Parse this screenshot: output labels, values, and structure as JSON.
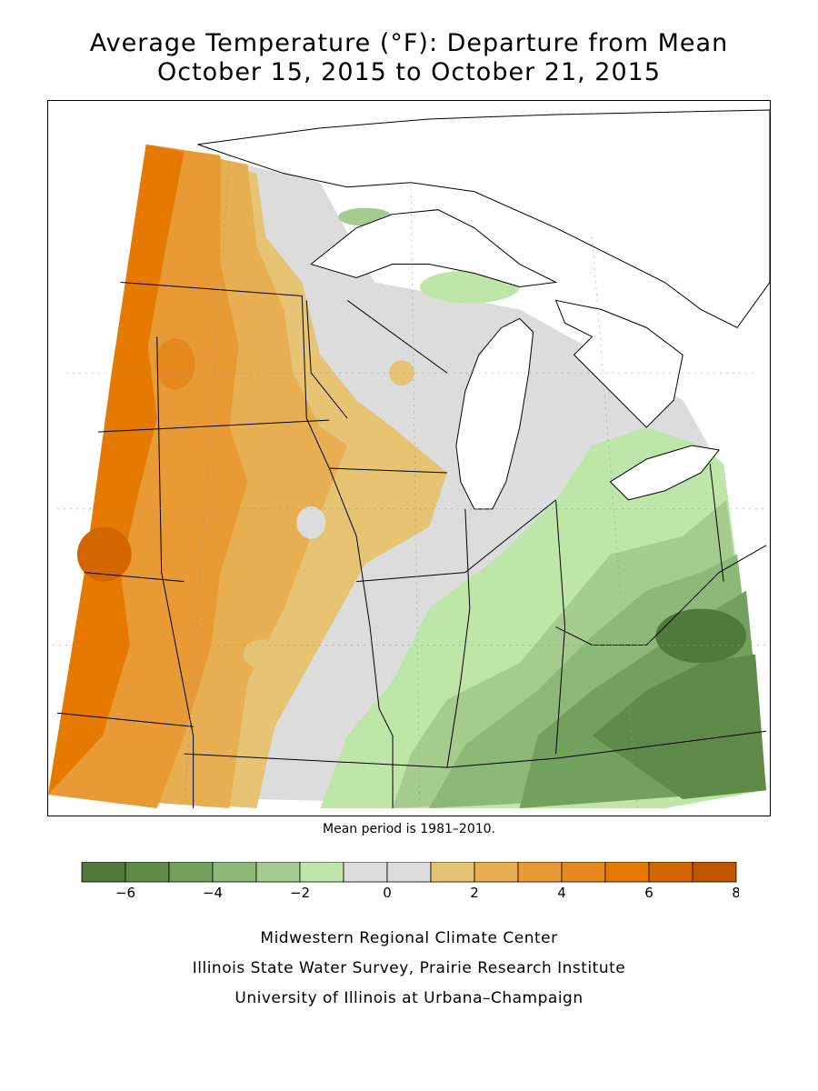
{
  "title_line1": "Average Temperature (°F): Departure from Mean",
  "title_line2": "October 15, 2015 to October 21, 2015",
  "mean_period_note": "Mean period is 1981–2010.",
  "legend": {
    "colors": [
      "#4f7a3a",
      "#5f8a48",
      "#74a05e",
      "#8cb878",
      "#a4cc8f",
      "#bde6a8",
      "#dcdcdc",
      "#dcdcdc",
      "#e6c473",
      "#e8ae52",
      "#e89a35",
      "#e7881f",
      "#e67a00",
      "#d46600",
      "#c25500"
    ],
    "tick_values": [
      "-6",
      "-4",
      "-2",
      "0",
      "2",
      "4",
      "6",
      "8"
    ]
  },
  "credits": [
    "Midwestern Regional Climate Center",
    "Illinois State Water Survey, Prairie Research Institute",
    "University of Illinois at Urbana–Champaign"
  ]
}
